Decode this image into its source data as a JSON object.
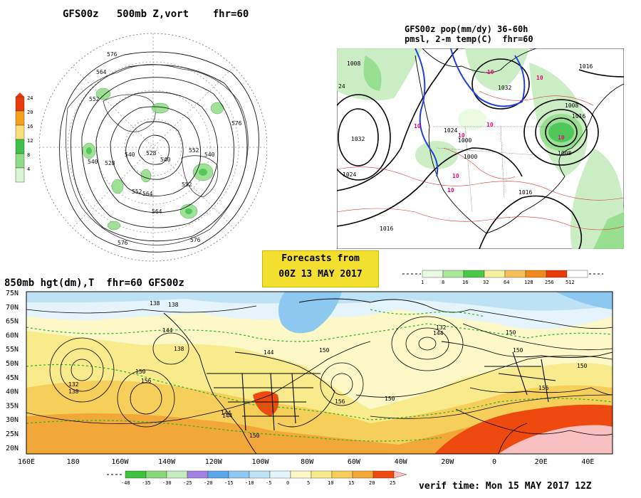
{
  "titles": {
    "panel_500mb": "GFS00z   500mb Z,vort    fhr=60",
    "panel_pop_line1": "GFS00z pop(mm/dy) 36-60h",
    "panel_pop_line2": "pmsl, 2-m temp(C)  fhr=60",
    "panel_850mb": "850mb hgt(dm),T  fhr=60 GFS00z"
  },
  "forecast_box": {
    "line1": "Forecasts from",
    "line2": "00Z 13 MAY 2017"
  },
  "verif_time": "verif time: Mon 15 MAY 2017 12Z",
  "vort_colorbar": {
    "labels": [
      "24",
      "20",
      "16",
      "12",
      "8",
      "4"
    ],
    "colors": [
      "#e83a0a",
      "#f5a01a",
      "#f7e07a",
      "#3ec24a",
      "#8fdc86",
      "#d6f5d0"
    ]
  },
  "pop_colorbar": {
    "labels": [
      "1",
      "8",
      "16",
      "32",
      "64",
      "128",
      "256",
      "512"
    ],
    "colors": [
      "#e8fae0",
      "#a8e898",
      "#4cc848",
      "#f6f09c",
      "#f5c05a",
      "#f08a1c",
      "#e83a0a",
      "#ffffff"
    ]
  },
  "temp_colorbar": {
    "labels": [
      "-40",
      "-35",
      "-30",
      "-25",
      "-20",
      "-15",
      "-10",
      "-5",
      "0",
      "5",
      "10",
      "15",
      "20",
      "25"
    ],
    "colors": [
      "#3cc23c",
      "#86d878",
      "#c6ecbe",
      "#a080e0",
      "#5aa8e8",
      "#8cc8f0",
      "#bde2f6",
      "#e4f4fa",
      "#fdf8c8",
      "#f9ea8c",
      "#f6cf5a",
      "#f2a838",
      "#ee4a10"
    ]
  },
  "map500": {
    "contour_labels": [
      "576",
      "564",
      "552",
      "540",
      "528",
      "540",
      "552",
      "564",
      "576",
      "576",
      "552",
      "540",
      "576",
      "564",
      "552",
      "540",
      "528"
    ]
  },
  "mappop": {
    "pressure_labels": [
      "1008",
      "1024",
      "1032",
      "1024",
      "1016",
      "1008",
      "1000",
      "1016",
      "1016",
      "1008",
      "1000",
      "1016",
      "1032"
    ],
    "temp_labels": [
      "-10",
      "10",
      "10",
      "10",
      "10",
      "10",
      "10",
      "10"
    ],
    "left_edge_label": "24"
  },
  "map850": {
    "lat_labels": [
      "75N",
      "70N",
      "65N",
      "60N",
      "55N",
      "50N",
      "45N",
      "40N",
      "35N",
      "30N",
      "25N",
      "20N"
    ],
    "lon_labels": [
      "160E",
      "180",
      "160W",
      "140W",
      "120W",
      "100W",
      "80W",
      "60W",
      "40W",
      "20W",
      "0",
      "20E",
      "40E"
    ],
    "contour_labels": [
      "138",
      "138",
      "144",
      "132",
      "138",
      "150",
      "156",
      "144",
      "144",
      "138",
      "144",
      "150",
      "150",
      "132",
      "144",
      "150",
      "150",
      "156",
      "150",
      "156",
      "150"
    ]
  }
}
